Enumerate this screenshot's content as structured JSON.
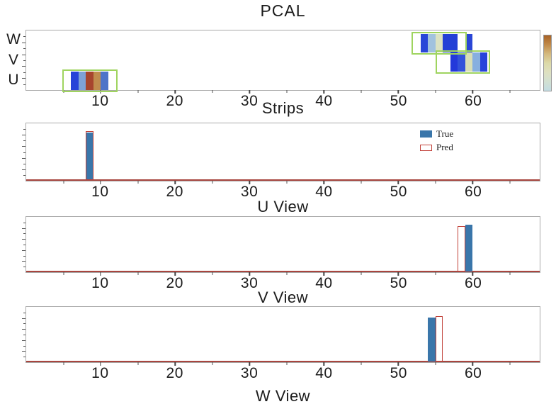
{
  "title": "PCAL",
  "legend": {
    "true_label": "True",
    "pred_label": "Pred"
  },
  "colors": {
    "true_fill": "#3a76aa",
    "pred_stroke": "#c2423a",
    "baseline_red": "#a8453e",
    "highlight_green": "#9fd45f",
    "panel_border": "#a9a9a9",
    "text_color": "#1c1c1c"
  },
  "axis": {
    "xlim": [
      0,
      69
    ],
    "major_ticks": [
      10,
      20,
      30,
      40,
      50,
      60
    ],
    "minor_ticks": [
      5,
      15,
      25,
      35,
      45,
      55,
      65
    ]
  },
  "chart_data": [
    {
      "type": "heatmap",
      "title": "PCAL",
      "xlabel": "Strips",
      "rows": [
        "W",
        "V",
        "U"
      ],
      "xlim": [
        0,
        69
      ],
      "grid": false,
      "cells": [
        {
          "row": "U",
          "x0": 6,
          "x1": 7,
          "color": "#2743d8"
        },
        {
          "row": "U",
          "x0": 7,
          "x1": 8,
          "color": "#7ea2d8"
        },
        {
          "row": "U",
          "x0": 8,
          "x1": 9,
          "color": "#a7452e"
        },
        {
          "row": "U",
          "x0": 9,
          "x1": 10,
          "color": "#c08c4e"
        },
        {
          "row": "U",
          "x0": 10,
          "x1": 11,
          "color": "#4d74c8"
        },
        {
          "row": "W",
          "x0": 53,
          "x1": 54,
          "color": "#2946d8"
        },
        {
          "row": "W",
          "x0": 54,
          "x1": 55,
          "color": "#a2c2de"
        },
        {
          "row": "W",
          "x0": 55,
          "x1": 56,
          "color": "#dce2c2"
        },
        {
          "row": "W",
          "x0": 56,
          "x1": 58,
          "color": "#2440d6"
        },
        {
          "row": "W",
          "x0": 59,
          "x1": 60,
          "color": "#2a46d6"
        },
        {
          "row": "V",
          "x0": 57,
          "x1": 58,
          "color": "#2339da"
        },
        {
          "row": "V",
          "x0": 58,
          "x1": 59,
          "color": "#3352da"
        },
        {
          "row": "V",
          "x0": 59,
          "x1": 60,
          "color": "#d9deb6"
        },
        {
          "row": "V",
          "x0": 60,
          "x1": 61,
          "color": "#87afdf"
        },
        {
          "row": "V",
          "x0": 61,
          "x1": 62,
          "color": "#2744da"
        }
      ],
      "highlight_boxes": [
        {
          "row": "W",
          "x0": 51.8,
          "x1": 59.2
        },
        {
          "row": "V",
          "x0": 55.0,
          "x1": 62.3
        },
        {
          "row": "U",
          "x0": 4.9,
          "x1": 12.3
        }
      ],
      "colorbar": {
        "position": "right",
        "gradient": [
          "#a86226",
          "#c08a4a",
          "#d4b97e",
          "#dcd9a8",
          "#dee0c0",
          "#d2e0d2",
          "#c2dce2"
        ]
      }
    },
    {
      "type": "bar",
      "title": "U View",
      "xlim": [
        0,
        69
      ],
      "legend_position": "upper right",
      "series": [
        {
          "name": "True",
          "style": "filled",
          "bins": [
            {
              "x0": 8,
              "x1": 9,
              "height_frac": 0.82
            }
          ]
        },
        {
          "name": "Pred",
          "style": "outline",
          "bins": [
            {
              "x0": 8,
              "x1": 9,
              "height_frac": 0.84
            }
          ]
        }
      ]
    },
    {
      "type": "bar",
      "title": "V View",
      "xlim": [
        0,
        69
      ],
      "series": [
        {
          "name": "True",
          "style": "filled",
          "bins": [
            {
              "x0": 59,
              "x1": 60,
              "height_frac": 0.84
            }
          ]
        },
        {
          "name": "Pred",
          "style": "outline",
          "bins": [
            {
              "x0": 58,
              "x1": 59,
              "height_frac": 0.82
            }
          ]
        }
      ]
    },
    {
      "type": "bar",
      "title": "W View",
      "xlim": [
        0,
        69
      ],
      "series": [
        {
          "name": "True",
          "style": "filled",
          "bins": [
            {
              "x0": 54,
              "x1": 55,
              "height_frac": 0.79
            }
          ]
        },
        {
          "name": "Pred",
          "style": "outline",
          "bins": [
            {
              "x0": 55,
              "x1": 56,
              "height_frac": 0.81
            }
          ]
        }
      ]
    }
  ]
}
